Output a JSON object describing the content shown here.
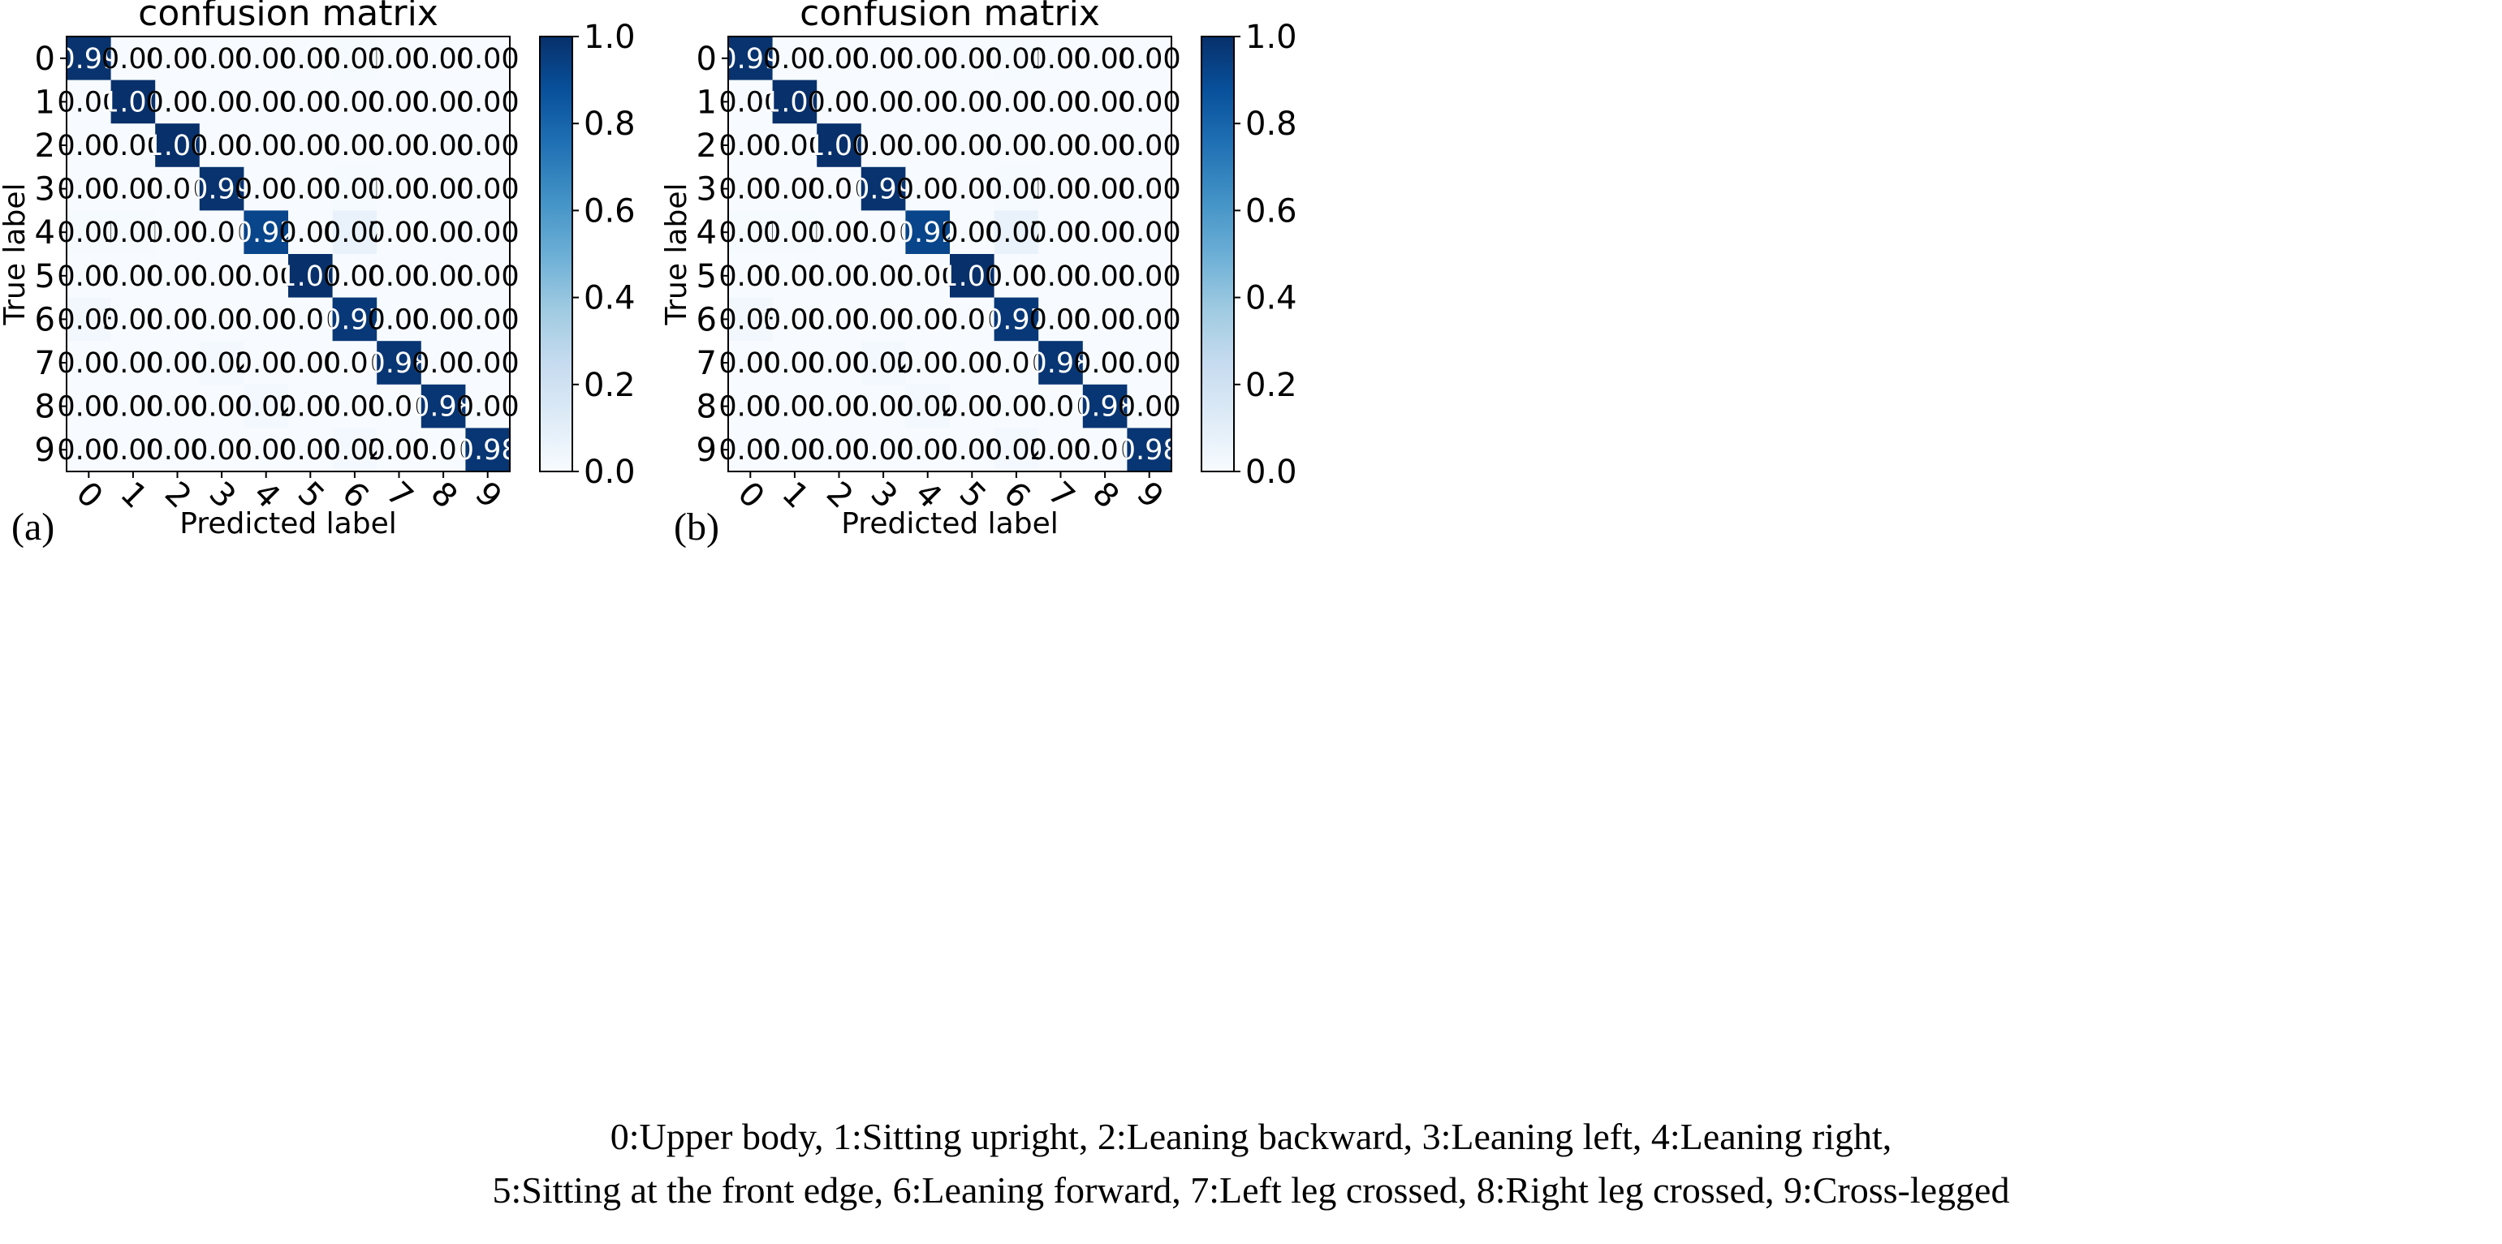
{
  "chart_data": [
    {
      "type": "heatmap",
      "panel_label": "(a)",
      "title": "confusion matrix",
      "xlabel": "Predicted label",
      "ylabel": "True label",
      "x_categories": [
        "0",
        "1",
        "2",
        "3",
        "4",
        "5",
        "6",
        "7",
        "8",
        "9"
      ],
      "y_categories": [
        "0",
        "1",
        "2",
        "3",
        "4",
        "5",
        "6",
        "7",
        "8",
        "9"
      ],
      "values": [
        [
          0.99,
          0.0,
          0.0,
          0.0,
          0.0,
          0.0,
          0.01,
          0.0,
          0.0,
          0.0
        ],
        [
          0.0,
          1.0,
          0.0,
          0.0,
          0.0,
          0.0,
          0.0,
          0.0,
          0.0,
          0.0
        ],
        [
          0.0,
          0.0,
          1.0,
          0.0,
          0.0,
          0.0,
          0.0,
          0.0,
          0.0,
          0.0
        ],
        [
          0.0,
          0.0,
          0.0,
          0.99,
          0.0,
          0.0,
          0.01,
          0.0,
          0.0,
          0.0
        ],
        [
          0.01,
          0.01,
          0.0,
          0.0,
          0.92,
          0.0,
          0.07,
          0.0,
          0.0,
          0.0
        ],
        [
          0.0,
          0.0,
          0.0,
          0.0,
          0.0,
          1.0,
          0.0,
          0.0,
          0.0,
          0.0
        ],
        [
          0.03,
          0.0,
          0.0,
          0.0,
          0.0,
          0.0,
          0.97,
          0.0,
          0.0,
          0.0
        ],
        [
          0.0,
          0.0,
          0.0,
          0.02,
          0.0,
          0.0,
          0.0,
          0.98,
          0.0,
          0.0
        ],
        [
          0.0,
          0.0,
          0.0,
          0.0,
          0.02,
          0.0,
          0.0,
          0.0,
          0.98,
          0.0
        ],
        [
          0.0,
          0.0,
          0.0,
          0.0,
          0.0,
          0.0,
          0.02,
          0.0,
          0.0,
          0.98
        ]
      ],
      "colorbar": {
        "range": [
          0.0,
          1.0
        ],
        "ticks": [
          "0.0",
          "0.2",
          "0.4",
          "0.6",
          "0.8",
          "1.0"
        ],
        "colormap": "Blues"
      }
    },
    {
      "type": "heatmap",
      "panel_label": "(b)",
      "title": "confusion matrix",
      "xlabel": "Predicted label",
      "ylabel": "True label",
      "x_categories": [
        "0",
        "1",
        "2",
        "3",
        "4",
        "5",
        "6",
        "7",
        "8",
        "9"
      ],
      "y_categories": [
        "0",
        "1",
        "2",
        "3",
        "4",
        "5",
        "6",
        "7",
        "8",
        "9"
      ],
      "values": [
        [
          0.99,
          0.0,
          0.0,
          0.0,
          0.0,
          0.0,
          0.01,
          0.0,
          0.0,
          0.0
        ],
        [
          0.0,
          1.0,
          0.0,
          0.0,
          0.0,
          0.0,
          0.0,
          0.0,
          0.0,
          0.0
        ],
        [
          0.0,
          0.0,
          1.0,
          0.0,
          0.0,
          0.0,
          0.0,
          0.0,
          0.0,
          0.0
        ],
        [
          0.0,
          0.0,
          0.0,
          0.99,
          0.0,
          0.0,
          0.01,
          0.0,
          0.0,
          0.0
        ],
        [
          0.01,
          0.01,
          0.0,
          0.0,
          0.92,
          0.0,
          0.07,
          0.0,
          0.0,
          0.0
        ],
        [
          0.0,
          0.0,
          0.0,
          0.0,
          0.0,
          1.0,
          0.0,
          0.0,
          0.0,
          0.0
        ],
        [
          0.03,
          0.0,
          0.0,
          0.0,
          0.0,
          0.0,
          0.97,
          0.0,
          0.0,
          0.0
        ],
        [
          0.0,
          0.0,
          0.0,
          0.02,
          0.0,
          0.0,
          0.0,
          0.98,
          0.0,
          0.0
        ],
        [
          0.0,
          0.0,
          0.0,
          0.0,
          0.02,
          0.0,
          0.0,
          0.0,
          0.98,
          0.0
        ],
        [
          0.0,
          0.0,
          0.0,
          0.0,
          0.0,
          0.0,
          0.02,
          0.0,
          0.0,
          0.98
        ]
      ],
      "colorbar": {
        "range": [
          0.0,
          1.0
        ],
        "ticks": [
          "0.0",
          "0.2",
          "0.4",
          "0.6",
          "0.8",
          "1.0"
        ],
        "colormap": "Blues"
      }
    }
  ],
  "caption": {
    "line1": "0:Upper body, 1:Sitting upright, 2:Leaning backward, 3:Leaning left, 4:Leaning right,",
    "line2": "5:Sitting at the front edge, 6:Leaning forward, 7:Left leg crossed, 8:Right leg crossed, 9:Cross-legged"
  },
  "colors": {
    "low": "#f7fbff",
    "high": "#08306b",
    "text_dark": "#000000",
    "text_light": "#ffffff"
  }
}
